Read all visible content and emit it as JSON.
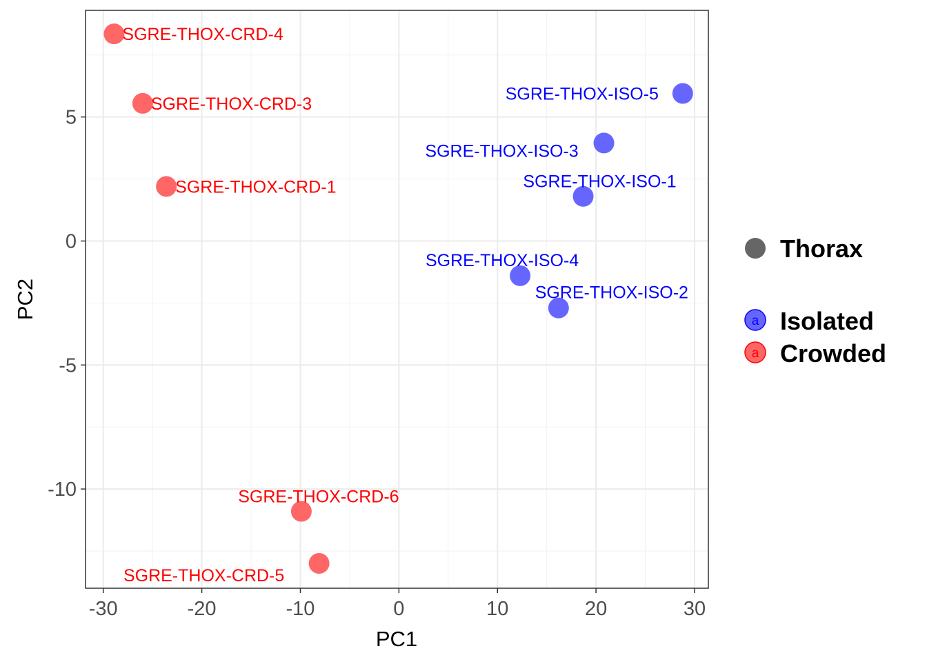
{
  "chart_data": {
    "type": "scatter",
    "xlabel": "PC1",
    "ylabel": "PC2",
    "xlim": [
      -31.8,
      31.4
    ],
    "ylim": [
      -14.0,
      9.3
    ],
    "x_ticks": [
      -30,
      -20,
      -10,
      0,
      10,
      20,
      30
    ],
    "y_ticks": [
      5,
      0,
      -5,
      -10
    ],
    "x_tick_labels": [
      "-30",
      "-20",
      "-10",
      "0",
      "10",
      "20",
      "30"
    ],
    "y_tick_labels": [
      "5",
      "0",
      "-5",
      "-10"
    ],
    "grid": true,
    "theme": "bw",
    "series": [
      {
        "name": "Isolated",
        "color": "#6666ff",
        "label_color": "#0000ff",
        "points": [
          {
            "label": "SGRE-THOX-ISO-5",
            "x": 28.8,
            "y": 5.95
          },
          {
            "label": "SGRE-THOX-ISO-3",
            "x": 20.8,
            "y": 3.95
          },
          {
            "label": "SGRE-THOX-ISO-1",
            "x": 18.7,
            "y": 1.8
          },
          {
            "label": "SGRE-THOX-ISO-4",
            "x": 12.3,
            "y": -1.4
          },
          {
            "label": "SGRE-THOX-ISO-2",
            "x": 16.2,
            "y": -2.7
          }
        ]
      },
      {
        "name": "Crowded",
        "color": "#ff6666",
        "label_color": "#ff0000",
        "points": [
          {
            "label": "SGRE-THOX-CRD-4",
            "x": -28.9,
            "y": 8.35
          },
          {
            "label": "SGRE-THOX-CRD-3",
            "x": -26.0,
            "y": 5.55
          },
          {
            "label": "SGRE-THOX-CRD-1",
            "x": -23.6,
            "y": 2.2
          },
          {
            "label": "SGRE-THOX-CRD-6",
            "x": -9.9,
            "y": -10.9
          },
          {
            "label": "SGRE-THOX-CRD-5",
            "x": -8.1,
            "y": -13.0
          }
        ]
      }
    ],
    "legend": {
      "position": "right",
      "shape_title": "Thorax",
      "shape_color": "#666666",
      "key_glyph": "a",
      "entries": [
        {
          "name": "Isolated",
          "fill": "#6666ff",
          "glyph_color": "#0000ff"
        },
        {
          "name": "Crowded",
          "fill": "#ff6666",
          "glyph_color": "#ff0000"
        }
      ]
    }
  }
}
